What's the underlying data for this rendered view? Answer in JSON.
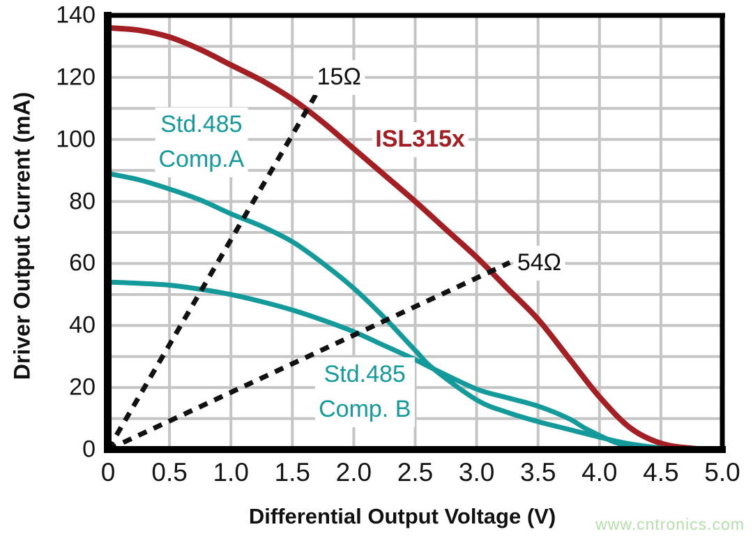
{
  "chart_data": {
    "type": "line",
    "xlabel": "Differential Output Voltage (V)",
    "ylabel": "Driver Output Current (mA)",
    "xlim": [
      0,
      5
    ],
    "ylim": [
      0,
      140
    ],
    "grid": {
      "x_step": 0.5,
      "y_step": 10,
      "color": "#c5c5c5",
      "on": true
    },
    "axis_color": "#000000",
    "x_ticks": {
      "values": [
        0,
        0.5,
        1.0,
        1.5,
        2.0,
        2.5,
        3.0,
        3.5,
        4.0,
        4.5,
        5.0
      ],
      "labels": [
        "0",
        "0.5",
        "1.0",
        "1.5",
        "2.0",
        "2.5",
        "3.0",
        "3.5",
        "4.0",
        "4.5",
        "5.0"
      ]
    },
    "y_ticks": {
      "values": [
        0,
        20,
        40,
        60,
        80,
        100,
        120,
        140
      ],
      "labels": [
        "0",
        "20",
        "40",
        "60",
        "80",
        "100",
        "120",
        "140"
      ]
    },
    "series": [
      {
        "name": "ISL315x",
        "color": "#a31f24",
        "style": "solid",
        "width": 8,
        "points": [
          [
            0,
            136
          ],
          [
            0.25,
            135.2
          ],
          [
            0.5,
            133
          ],
          [
            0.75,
            129
          ],
          [
            1.0,
            124
          ],
          [
            1.25,
            119
          ],
          [
            1.5,
            113
          ],
          [
            1.75,
            105.5
          ],
          [
            2.0,
            97
          ],
          [
            2.25,
            88.5
          ],
          [
            2.5,
            80
          ],
          [
            2.75,
            71
          ],
          [
            3.0,
            62
          ],
          [
            3.25,
            52
          ],
          [
            3.5,
            42
          ],
          [
            3.75,
            29.5
          ],
          [
            4.0,
            17
          ],
          [
            4.25,
            7
          ],
          [
            4.5,
            2
          ],
          [
            4.75,
            0.4
          ],
          [
            5.0,
            0
          ]
        ]
      },
      {
        "name": "Std.485 Comp.A",
        "color": "#149a9a",
        "style": "solid",
        "width": 7,
        "points": [
          [
            0,
            89
          ],
          [
            0.25,
            87
          ],
          [
            0.5,
            84
          ],
          [
            0.75,
            80.5
          ],
          [
            1.0,
            76
          ],
          [
            1.25,
            72
          ],
          [
            1.5,
            67
          ],
          [
            1.75,
            60
          ],
          [
            2.0,
            52
          ],
          [
            2.25,
            42.5
          ],
          [
            2.5,
            32
          ],
          [
            2.65,
            26
          ],
          [
            3.0,
            16
          ],
          [
            3.25,
            12
          ],
          [
            3.5,
            9
          ],
          [
            3.75,
            6.5
          ],
          [
            4.0,
            4
          ],
          [
            4.25,
            1.8
          ],
          [
            4.6,
            0
          ]
        ]
      },
      {
        "name": "Std.485 Comp. B",
        "color": "#149a9a",
        "style": "solid",
        "width": 7,
        "points": [
          [
            0,
            54
          ],
          [
            0.25,
            53.6
          ],
          [
            0.5,
            53
          ],
          [
            0.75,
            51.7
          ],
          [
            1.0,
            50
          ],
          [
            1.25,
            47.7
          ],
          [
            1.5,
            45
          ],
          [
            1.75,
            41.7
          ],
          [
            2.0,
            38
          ],
          [
            2.25,
            33.5
          ],
          [
            2.5,
            29
          ],
          [
            2.65,
            26
          ],
          [
            3.0,
            19.5
          ],
          [
            3.25,
            16.7
          ],
          [
            3.5,
            14
          ],
          [
            3.75,
            10
          ],
          [
            3.9,
            6.5
          ],
          [
            4.15,
            2
          ],
          [
            4.4,
            0
          ]
        ]
      },
      {
        "name": "15 Ohm load line",
        "color": "#111111",
        "style": "dashed",
        "width": 7,
        "points": [
          [
            0,
            0
          ],
          [
            1.7,
            115
          ]
        ]
      },
      {
        "name": "54 Ohm load line",
        "color": "#111111",
        "style": "dashed",
        "width": 7,
        "points": [
          [
            0,
            0
          ],
          [
            3.27,
            60.3
          ]
        ]
      }
    ],
    "annotations": [
      {
        "lines": [
          "15Ω"
        ],
        "x": 1.88,
        "y": 119.9,
        "color": "#111111",
        "bold": false,
        "size": 34
      },
      {
        "lines": [
          "ISL315x"
        ],
        "x": 2.54,
        "y": 99.9,
        "color": "#a31f24",
        "bold": true,
        "size": 34
      },
      {
        "lines": [
          "Std.485",
          "Comp.A"
        ],
        "x": 0.76,
        "y": 99.0,
        "color": "#149a9a",
        "bold": false,
        "size": 34
      },
      {
        "lines": [
          "Std.485",
          "Comp. B"
        ],
        "x": 2.09,
        "y": 18.5,
        "color": "#149a9a",
        "bold": false,
        "size": 34
      },
      {
        "lines": [
          "54Ω"
        ],
        "x": 3.51,
        "y": 60.0,
        "color": "#111111",
        "bold": false,
        "size": 34
      }
    ],
    "watermark": {
      "text": "www.cntronics.com",
      "color": "#b4dfa9"
    }
  }
}
